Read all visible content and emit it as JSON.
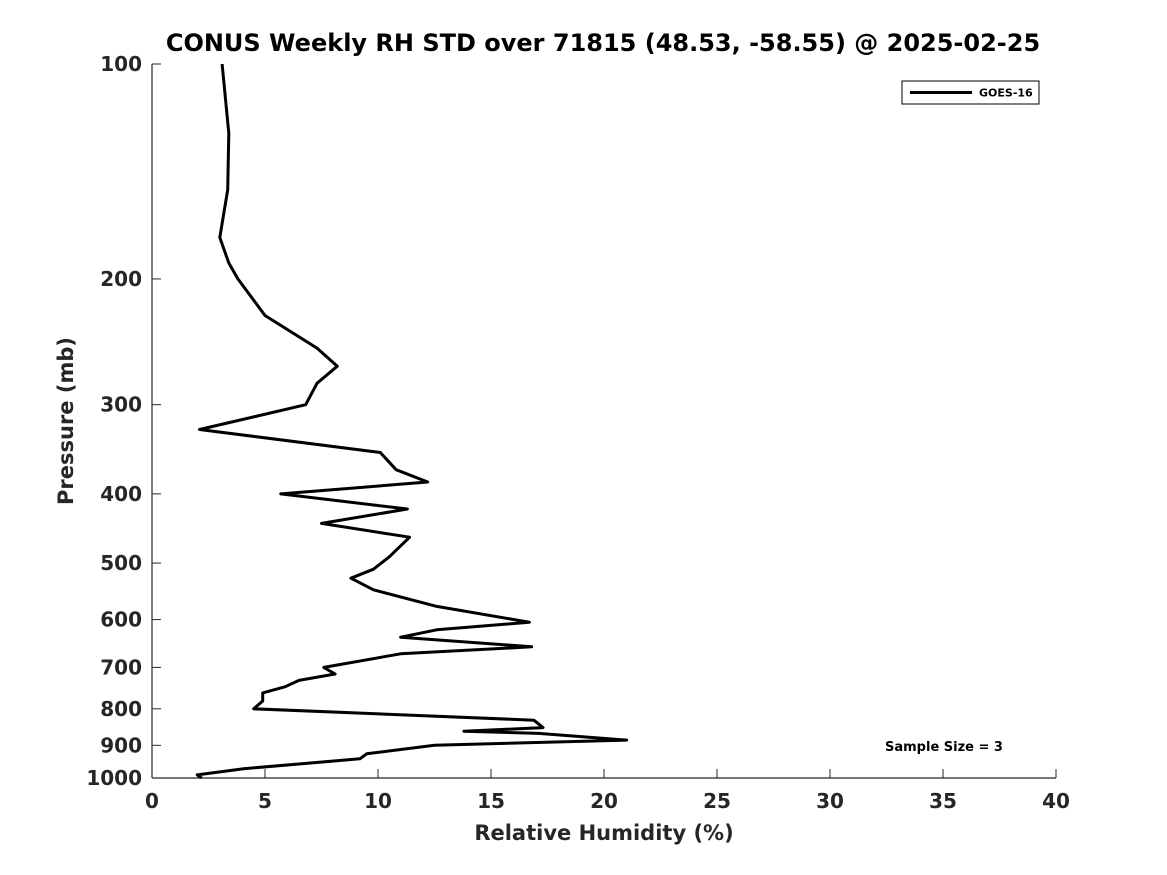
{
  "chart_data": {
    "type": "line",
    "title": "CONUS Weekly RH STD over 71815 (48.53, -58.55) @ 2025-02-25",
    "xlabel": "Relative Humidity (%)",
    "ylabel": "Pressure (mb)",
    "xlim": [
      0,
      40
    ],
    "ylim": [
      100,
      1000
    ],
    "y_scale": "log",
    "y_reversed": true,
    "grid": false,
    "legend_placement": "top-right",
    "x_ticks": [
      0,
      5,
      10,
      15,
      20,
      25,
      30,
      35,
      40
    ],
    "x_tick_labels": [
      "0",
      "5",
      "10",
      "15",
      "20",
      "25",
      "30",
      "35",
      "40"
    ],
    "y_ticks": [
      100,
      200,
      300,
      400,
      500,
      600,
      700,
      800,
      900,
      1000
    ],
    "y_tick_labels": [
      "100",
      "200",
      "300",
      "400",
      "500",
      "600",
      "700",
      "800",
      "900",
      "1000"
    ],
    "series": [
      {
        "name": "GOES-16",
        "color": "#000000",
        "points": [
          [
            3.1,
            100
          ],
          [
            3.4,
            125
          ],
          [
            3.35,
            150
          ],
          [
            3.0,
            175
          ],
          [
            3.4,
            190
          ],
          [
            3.8,
            200
          ],
          [
            5.0,
            225
          ],
          [
            7.3,
            250
          ],
          [
            8.2,
            265
          ],
          [
            7.3,
            280
          ],
          [
            6.8,
            300
          ],
          [
            2.1,
            325
          ],
          [
            10.1,
            350
          ],
          [
            10.8,
            370
          ],
          [
            12.2,
            385
          ],
          [
            5.7,
            400
          ],
          [
            11.3,
            420
          ],
          [
            7.5,
            440
          ],
          [
            11.4,
            460
          ],
          [
            10.5,
            490
          ],
          [
            9.8,
            510
          ],
          [
            8.8,
            525
          ],
          [
            9.8,
            545
          ],
          [
            12.6,
            575
          ],
          [
            16.7,
            605
          ],
          [
            12.6,
            620
          ],
          [
            11.0,
            635
          ],
          [
            16.8,
            655
          ],
          [
            11.0,
            670
          ],
          [
            7.6,
            700
          ],
          [
            8.1,
            715
          ],
          [
            6.5,
            730
          ],
          [
            5.9,
            745
          ],
          [
            4.9,
            760
          ],
          [
            4.9,
            780
          ],
          [
            4.5,
            800
          ],
          [
            16.9,
            830
          ],
          [
            17.3,
            850
          ],
          [
            13.8,
            860
          ],
          [
            17.1,
            866
          ],
          [
            21.0,
            885
          ],
          [
            12.5,
            900
          ],
          [
            9.5,
            925
          ],
          [
            9.2,
            940
          ],
          [
            4.1,
            970
          ],
          [
            2.0,
            990
          ],
          [
            2.2,
            1000
          ]
        ]
      }
    ],
    "annotations": [
      {
        "text": "Sample Size = 3",
        "x": 35.7,
        "y": 900
      }
    ]
  }
}
